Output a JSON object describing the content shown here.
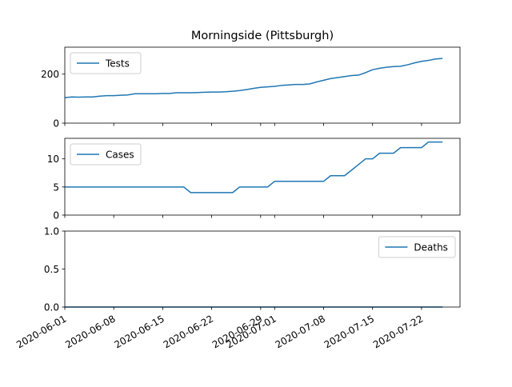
{
  "chart_data": {
    "type": "line",
    "title": "Morningside (Pittsburgh)",
    "line_color": "#1f77b4",
    "grid": false,
    "x": [
      "2020-06-01",
      "2020-06-02",
      "2020-06-03",
      "2020-06-04",
      "2020-06-05",
      "2020-06-06",
      "2020-06-07",
      "2020-06-08",
      "2020-06-09",
      "2020-06-10",
      "2020-06-11",
      "2020-06-12",
      "2020-06-13",
      "2020-06-14",
      "2020-06-15",
      "2020-06-16",
      "2020-06-17",
      "2020-06-18",
      "2020-06-19",
      "2020-06-20",
      "2020-06-21",
      "2020-06-22",
      "2020-06-23",
      "2020-06-24",
      "2020-06-25",
      "2020-06-26",
      "2020-06-27",
      "2020-06-28",
      "2020-06-29",
      "2020-06-30",
      "2020-07-01",
      "2020-07-02",
      "2020-07-03",
      "2020-07-04",
      "2020-07-05",
      "2020-07-06",
      "2020-07-07",
      "2020-07-08",
      "2020-07-09",
      "2020-07-10",
      "2020-07-11",
      "2020-07-12",
      "2020-07-13",
      "2020-07-14",
      "2020-07-15",
      "2020-07-16",
      "2020-07-17",
      "2020-07-18",
      "2020-07-19",
      "2020-07-20",
      "2020-07-21",
      "2020-07-22",
      "2020-07-23",
      "2020-07-24",
      "2020-07-25"
    ],
    "x_ticks": [
      "2020-06-01",
      "2020-06-08",
      "2020-06-15",
      "2020-06-22",
      "2020-06-29",
      "2020-07-01",
      "2020-07-08",
      "2020-07-15",
      "2020-07-22"
    ],
    "panels": [
      {
        "series": [
          {
            "name": "Tests",
            "values": [
              104,
              107,
              106,
              107,
              107,
              110,
              112,
              112,
              114,
              115,
              120,
              120,
              120,
              120,
              121,
              121,
              124,
              124,
              124,
              125,
              126,
              127,
              127,
              128,
              130,
              133,
              137,
              142,
              146,
              148,
              150,
              154,
              156,
              158,
              158,
              160,
              168,
              175,
              182,
              186,
              190,
              194,
              196,
              206,
              218,
              224,
              228,
              231,
              232,
              238,
              246,
              252,
              256,
              262,
              264
            ]
          }
        ],
        "yticks": [
          0,
          200
        ],
        "ylim": [
          0,
          310
        ],
        "legend": "upper-left"
      },
      {
        "series": [
          {
            "name": "Cases",
            "values": [
              5,
              5,
              5,
              5,
              5,
              5,
              5,
              5,
              5,
              5,
              5,
              5,
              5,
              5,
              5,
              5,
              5,
              5,
              4,
              4,
              4,
              4,
              4,
              4,
              4,
              5,
              5,
              5,
              5,
              5,
              6,
              6,
              6,
              6,
              6,
              6,
              6,
              6,
              7,
              7,
              7,
              8,
              9,
              10,
              10,
              11,
              11,
              11,
              12,
              12,
              12,
              12,
              13,
              13,
              13
            ]
          }
        ],
        "yticks": [
          0,
          5,
          10
        ],
        "ylim": [
          0,
          13.65
        ],
        "legend": "upper-left"
      },
      {
        "series": [
          {
            "name": "Deaths",
            "values": [
              0,
              0,
              0,
              0,
              0,
              0,
              0,
              0,
              0,
              0,
              0,
              0,
              0,
              0,
              0,
              0,
              0,
              0,
              0,
              0,
              0,
              0,
              0,
              0,
              0,
              0,
              0,
              0,
              0,
              0,
              0,
              0,
              0,
              0,
              0,
              0,
              0,
              0,
              0,
              0,
              0,
              0,
              0,
              0,
              0,
              0,
              0,
              0,
              0,
              0,
              0,
              0,
              0,
              0,
              0
            ]
          }
        ],
        "yticks": [
          0.0,
          0.5,
          1.0
        ],
        "ytick_labels": [
          "0.0",
          "0.5",
          "1.0"
        ],
        "ylim": [
          0,
          1
        ],
        "legend": "upper-right"
      }
    ]
  }
}
